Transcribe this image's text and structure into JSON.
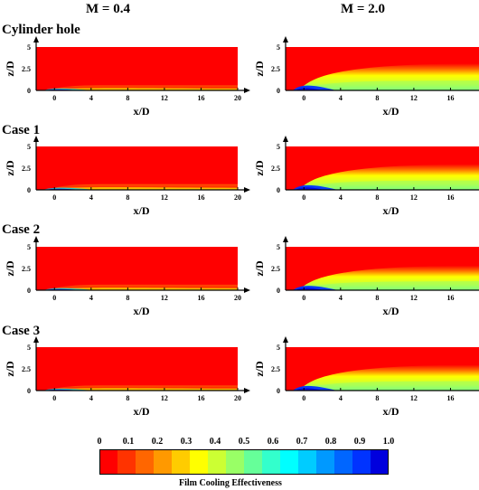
{
  "column_headers": [
    "M = 0.4",
    "M = 2.0"
  ],
  "row_labels": [
    "Cylinder hole",
    "Case 1",
    "Case 2",
    "Case 3"
  ],
  "chart_data": {
    "type": "heatmap",
    "xlabel": "x/D",
    "ylabel": "z/D",
    "x_ticks": [
      "0",
      "4",
      "8",
      "12",
      "16",
      "20"
    ],
    "y_ticks": [
      "0",
      "2.5",
      "5"
    ],
    "xlim": [
      -2,
      20
    ],
    "ylim": [
      0,
      5
    ],
    "panels": [
      {
        "row": "Cylinder hole",
        "column": "M = 0.4",
        "core_end_x": 1.5,
        "plume_height": 0.9,
        "wake_strength": 0.35
      },
      {
        "row": "Cylinder hole",
        "column": "M = 2.0",
        "core_end_x": 1.0,
        "plume_height": 2.3,
        "wake_strength": 0.6
      },
      {
        "row": "Case 1",
        "column": "M = 0.4",
        "core_end_x": 1.8,
        "plume_height": 1.0,
        "wake_strength": 0.42
      },
      {
        "row": "Case 1",
        "column": "M = 2.0",
        "core_end_x": 1.2,
        "plume_height": 2.2,
        "wake_strength": 0.65
      },
      {
        "row": "Case 2",
        "column": "M = 0.4",
        "core_end_x": 1.8,
        "plume_height": 0.95,
        "wake_strength": 0.4
      },
      {
        "row": "Case 2",
        "column": "M = 2.0",
        "core_end_x": 1.2,
        "plume_height": 2.1,
        "wake_strength": 0.68
      },
      {
        "row": "Case 3",
        "column": "M = 0.4",
        "core_end_x": 1.6,
        "plume_height": 0.9,
        "wake_strength": 0.38
      },
      {
        "row": "Case 3",
        "column": "M = 2.0",
        "core_end_x": 1.1,
        "plume_height": 2.2,
        "wake_strength": 0.62
      }
    ],
    "colorbar": {
      "label": "Film Cooling Effectiveness",
      "range": [
        0,
        1
      ],
      "ticks": [
        "0",
        "0.1",
        "0.2",
        "0.3",
        "0.4",
        "0.5",
        "0.6",
        "0.7",
        "0.8",
        "0.9",
        "1.0"
      ],
      "colors": [
        "#ff0000",
        "#ff3300",
        "#ff6600",
        "#ff9900",
        "#ffcc00",
        "#ffff00",
        "#ccff33",
        "#99ff66",
        "#66ff99",
        "#33ffcc",
        "#00ffff",
        "#00ccff",
        "#0099ff",
        "#0066ff",
        "#0033ff",
        "#0000dd"
      ]
    }
  }
}
